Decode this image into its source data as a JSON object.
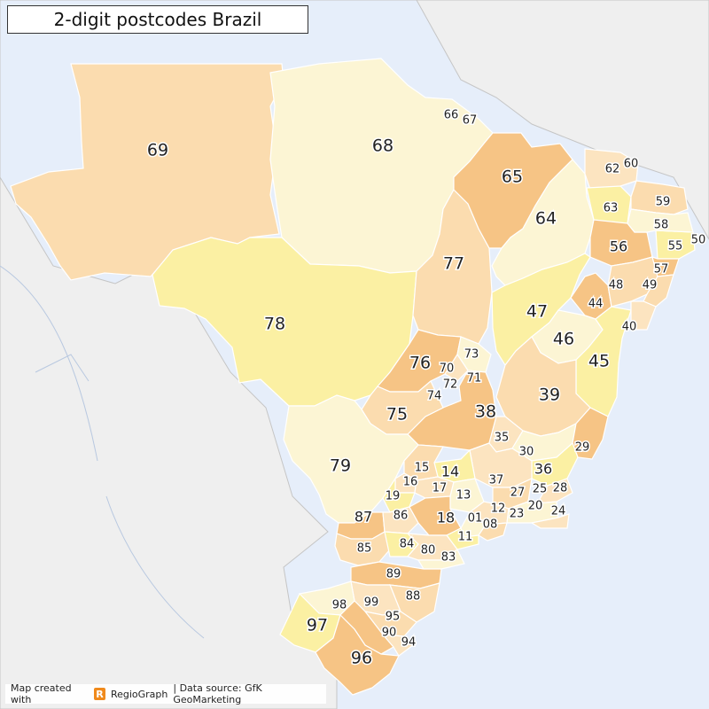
{
  "title": "2-digit postcodes Brazil",
  "credit": {
    "prefix": "Map created with",
    "logo_letter": "R",
    "brand": "RegioGraph",
    "source": "| Data source: GfK GeoMarketing"
  },
  "colors": {
    "ocean": "#e6eefa",
    "land": "#efefef",
    "border": "#b9b9b9",
    "peach": "#fbdcaf",
    "cream": "#fcf5d4",
    "yellow": "#fbf0a3",
    "orange": "#f6c485",
    "light_orange": "#fce4c0"
  },
  "regions": [
    {
      "code": "69",
      "color": "peach"
    },
    {
      "code": "68",
      "color": "cream"
    },
    {
      "code": "78",
      "color": "yellow"
    },
    {
      "code": "77",
      "color": "peach"
    },
    {
      "code": "65",
      "color": "orange"
    },
    {
      "code": "64",
      "color": "cream"
    },
    {
      "code": "79",
      "color": "cream"
    },
    {
      "code": "76",
      "color": "orange"
    },
    {
      "code": "75",
      "color": "peach"
    },
    {
      "code": "39",
      "color": "peach"
    },
    {
      "code": "47",
      "color": "yellow"
    },
    {
      "code": "38",
      "color": "orange"
    },
    {
      "code": "45",
      "color": "yellow"
    },
    {
      "code": "46",
      "color": "cream"
    },
    {
      "code": "96",
      "color": "orange"
    },
    {
      "code": "97",
      "color": "yellow"
    },
    {
      "code": "87",
      "color": "orange"
    },
    {
      "code": "85",
      "color": "peach"
    }
  ],
  "labels": [
    {
      "code": "69",
      "size": "big"
    },
    {
      "code": "68",
      "size": "big"
    },
    {
      "code": "78",
      "size": "big"
    },
    {
      "code": "77",
      "size": "big"
    },
    {
      "code": "65",
      "size": "big"
    },
    {
      "code": "64",
      "size": "big"
    },
    {
      "code": "79",
      "size": "big"
    },
    {
      "code": "76",
      "size": "big"
    },
    {
      "code": "75",
      "size": "big"
    },
    {
      "code": "39",
      "size": "big"
    },
    {
      "code": "47",
      "size": "big"
    },
    {
      "code": "38",
      "size": "big"
    },
    {
      "code": "45",
      "size": "big"
    },
    {
      "code": "46",
      "size": "big"
    },
    {
      "code": "96",
      "size": "big"
    },
    {
      "code": "97",
      "size": "big"
    },
    {
      "code": "66",
      "size": "sm"
    },
    {
      "code": "67",
      "size": "sm"
    },
    {
      "code": "62",
      "size": "sm"
    },
    {
      "code": "60",
      "size": "sm"
    },
    {
      "code": "63",
      "size": "sm"
    },
    {
      "code": "59",
      "size": "sm"
    },
    {
      "code": "58",
      "size": "sm"
    },
    {
      "code": "56",
      "size": "mid"
    },
    {
      "code": "55",
      "size": "sm"
    },
    {
      "code": "50",
      "size": "sm"
    },
    {
      "code": "57",
      "size": "sm"
    },
    {
      "code": "49",
      "size": "sm"
    },
    {
      "code": "48",
      "size": "sm"
    },
    {
      "code": "44",
      "size": "sm"
    },
    {
      "code": "40",
      "size": "sm"
    },
    {
      "code": "73",
      "size": "sm"
    },
    {
      "code": "70",
      "size": "sm"
    },
    {
      "code": "71",
      "size": "sm"
    },
    {
      "code": "72",
      "size": "sm"
    },
    {
      "code": "74",
      "size": "sm"
    },
    {
      "code": "35",
      "size": "sm"
    },
    {
      "code": "30",
      "size": "sm"
    },
    {
      "code": "29",
      "size": "sm"
    },
    {
      "code": "36",
      "size": "mid"
    },
    {
      "code": "15",
      "size": "sm"
    },
    {
      "code": "14",
      "size": "mid"
    },
    {
      "code": "16",
      "size": "sm"
    },
    {
      "code": "37",
      "size": "sm"
    },
    {
      "code": "28",
      "size": "sm"
    },
    {
      "code": "19",
      "size": "sm"
    },
    {
      "code": "17",
      "size": "sm"
    },
    {
      "code": "13",
      "size": "sm"
    },
    {
      "code": "27",
      "size": "sm"
    },
    {
      "code": "25",
      "size": "sm"
    },
    {
      "code": "20",
      "size": "sm"
    },
    {
      "code": "24",
      "size": "sm"
    },
    {
      "code": "87",
      "size": "mid"
    },
    {
      "code": "86",
      "size": "sm"
    },
    {
      "code": "18",
      "size": "mid"
    },
    {
      "code": "01",
      "size": "sm"
    },
    {
      "code": "12",
      "size": "sm"
    },
    {
      "code": "23",
      "size": "sm"
    },
    {
      "code": "08",
      "size": "sm"
    },
    {
      "code": "11",
      "size": "sm"
    },
    {
      "code": "85",
      "size": "sm"
    },
    {
      "code": "84",
      "size": "sm"
    },
    {
      "code": "80",
      "size": "sm"
    },
    {
      "code": "83",
      "size": "sm"
    },
    {
      "code": "89",
      "size": "sm"
    },
    {
      "code": "88",
      "size": "sm"
    },
    {
      "code": "98",
      "size": "sm"
    },
    {
      "code": "99",
      "size": "sm"
    },
    {
      "code": "95",
      "size": "sm"
    },
    {
      "code": "90",
      "size": "sm"
    },
    {
      "code": "94",
      "size": "sm"
    }
  ]
}
